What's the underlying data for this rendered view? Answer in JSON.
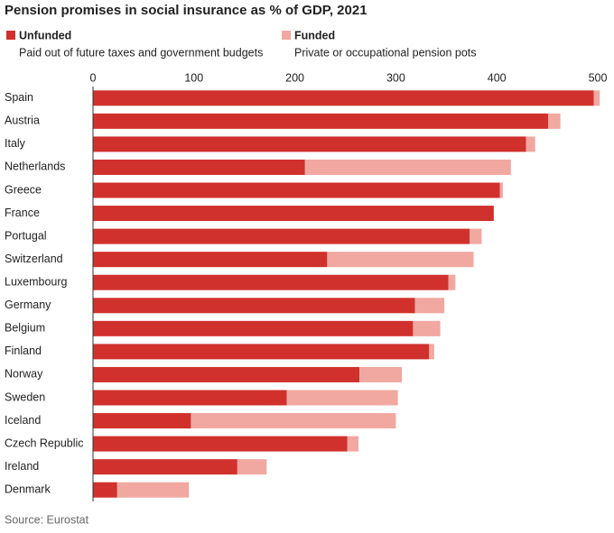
{
  "chart_data": {
    "type": "stacked-bar-horizontal",
    "title": "Pension promises in social insurance as % of GDP, 2021",
    "source": "Source: Eurostat",
    "categories": [
      "Spain",
      "Austria",
      "Italy",
      "Netherlands",
      "Greece",
      "France",
      "Portugal",
      "Switzerland",
      "Luxembourg",
      "Germany",
      "Belgium",
      "Finland",
      "Norway",
      "Sweden",
      "Iceland",
      "Czech Republic",
      "Ireland",
      "Denmark"
    ],
    "series": [
      {
        "name": "Unfunded",
        "description": "Paid out of future taxes and government budgets",
        "color": "#d0312d",
        "values": [
          496,
          451,
          429,
          210,
          403,
          397,
          373,
          232,
          352,
          319,
          317,
          333,
          264,
          192,
          97,
          252,
          143,
          24
        ]
      },
      {
        "name": "Funded",
        "description": "Private or occupational pension pots",
        "color": "#f0a8a0",
        "values": [
          6,
          12,
          9,
          204,
          3,
          0,
          12,
          145,
          7,
          29,
          27,
          5,
          42,
          110,
          203,
          11,
          29,
          71
        ]
      }
    ],
    "xlim": [
      0,
      500
    ],
    "xticks": [
      0,
      100,
      200,
      300,
      400,
      500
    ],
    "grid": false
  }
}
